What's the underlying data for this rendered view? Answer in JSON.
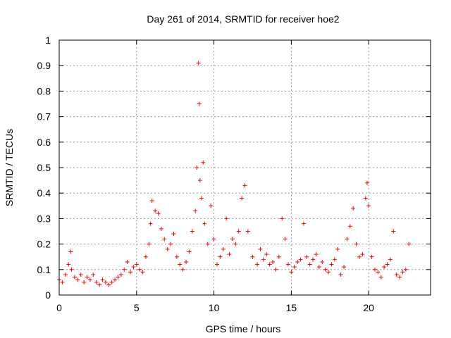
{
  "chart_data": {
    "type": "scatter",
    "title": "Day 261 of 2014, SRMTID for receiver hoe2",
    "xlabel": "GPS time / hours",
    "ylabel": "SRMTID / TECUs",
    "xlim": [
      0,
      24
    ],
    "ylim": [
      0,
      1
    ],
    "xticks": [
      0,
      5,
      10,
      15,
      20
    ],
    "xtick_labels": [
      "0",
      "5",
      "10",
      "15",
      "20"
    ],
    "yticks": [
      0,
      0.1,
      0.2,
      0.3,
      0.4,
      0.5,
      0.6,
      0.7,
      0.8,
      0.9,
      1
    ],
    "ytick_labels": [
      "0",
      "0.1",
      "0.2",
      "0.3",
      "0.4",
      "0.5",
      "0.6",
      "0.7",
      "0.8",
      "0.9",
      "1"
    ],
    "grid": true,
    "marker": "+",
    "color": "#ff0000",
    "series": [
      {
        "name": "SRMTID",
        "x": [
          0.0,
          0.2,
          0.4,
          0.6,
          0.75,
          0.8,
          1.0,
          1.2,
          1.4,
          1.6,
          1.8,
          2.0,
          2.2,
          2.4,
          2.6,
          2.8,
          3.0,
          3.2,
          3.4,
          3.6,
          3.8,
          4.0,
          4.2,
          4.4,
          4.6,
          4.8,
          5.0,
          5.2,
          5.4,
          5.6,
          5.8,
          5.9,
          6.0,
          6.2,
          6.4,
          6.6,
          6.8,
          7.0,
          7.2,
          7.4,
          7.6,
          7.8,
          8.0,
          8.2,
          8.4,
          8.6,
          8.8,
          8.9,
          9.0,
          9.05,
          9.1,
          9.2,
          9.3,
          9.4,
          9.6,
          9.8,
          10.0,
          10.2,
          10.4,
          10.6,
          10.8,
          11.0,
          11.2,
          11.4,
          11.6,
          11.8,
          12.0,
          12.2,
          12.5,
          12.8,
          13.0,
          13.2,
          13.4,
          13.6,
          13.8,
          14.0,
          14.2,
          14.4,
          14.6,
          14.8,
          15.0,
          15.2,
          15.4,
          15.6,
          15.8,
          16.0,
          16.2,
          16.4,
          16.6,
          16.8,
          17.0,
          17.2,
          17.4,
          17.6,
          17.8,
          18.0,
          18.2,
          18.4,
          18.6,
          18.8,
          19.0,
          19.2,
          19.4,
          19.6,
          19.8,
          19.9,
          20.0,
          20.2,
          20.4,
          20.6,
          20.8,
          21.0,
          21.2,
          21.4,
          21.6,
          21.8,
          22.0,
          22.2,
          22.4,
          22.6
        ],
        "y": [
          0.06,
          0.05,
          0.08,
          0.12,
          0.17,
          0.1,
          0.07,
          0.06,
          0.08,
          0.05,
          0.07,
          0.06,
          0.08,
          0.05,
          0.04,
          0.06,
          0.05,
          0.04,
          0.05,
          0.06,
          0.07,
          0.08,
          0.1,
          0.13,
          0.09,
          0.11,
          0.12,
          0.1,
          0.09,
          0.15,
          0.2,
          0.28,
          0.37,
          0.33,
          0.32,
          0.26,
          0.22,
          0.18,
          0.2,
          0.24,
          0.15,
          0.12,
          0.1,
          0.13,
          0.17,
          0.25,
          0.33,
          0.5,
          0.91,
          0.75,
          0.45,
          0.38,
          0.52,
          0.28,
          0.2,
          0.35,
          0.22,
          0.12,
          0.15,
          0.18,
          0.3,
          0.16,
          0.22,
          0.2,
          0.25,
          0.38,
          0.43,
          0.25,
          0.15,
          0.12,
          0.18,
          0.14,
          0.16,
          0.12,
          0.13,
          0.1,
          0.15,
          0.3,
          0.22,
          0.12,
          0.09,
          0.11,
          0.13,
          0.14,
          0.28,
          0.15,
          0.12,
          0.14,
          0.16,
          0.11,
          0.13,
          0.1,
          0.09,
          0.12,
          0.14,
          0.18,
          0.08,
          0.11,
          0.22,
          0.27,
          0.34,
          0.2,
          0.15,
          0.16,
          0.38,
          0.44,
          0.35,
          0.15,
          0.1,
          0.09,
          0.07,
          0.11,
          0.12,
          0.14,
          0.25,
          0.08,
          0.07,
          0.09,
          0.1,
          0.2
        ]
      }
    ]
  }
}
